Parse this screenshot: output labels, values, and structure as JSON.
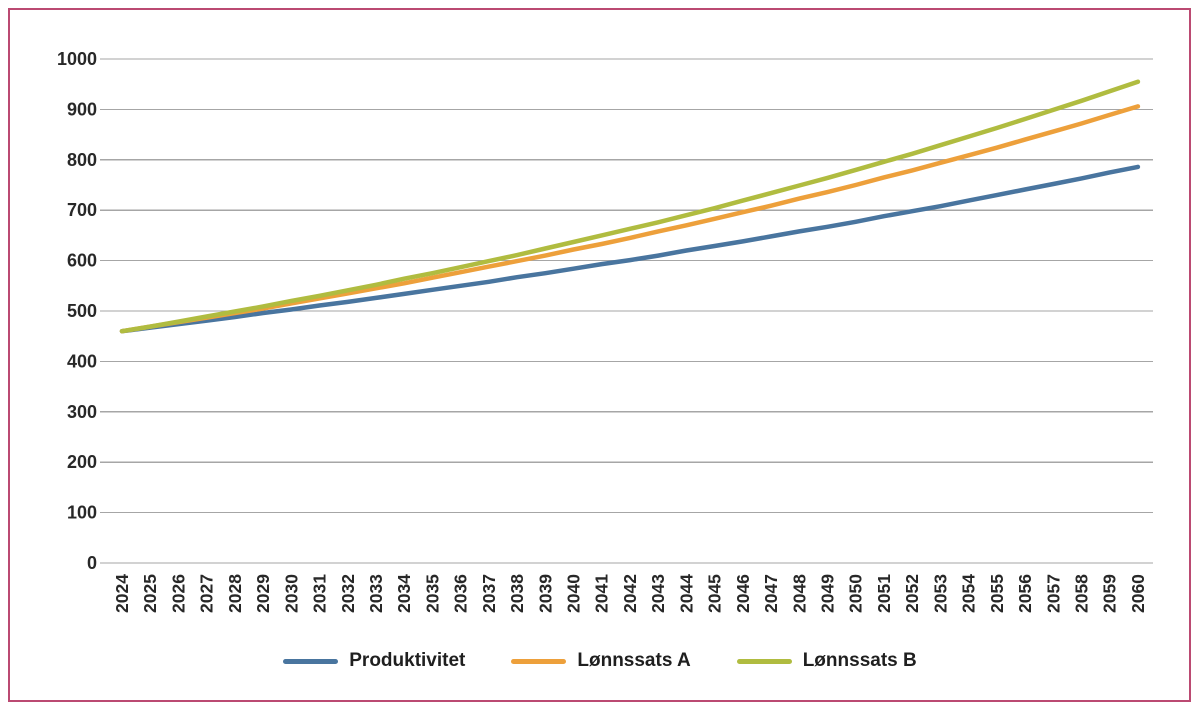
{
  "frame": {
    "border_color": "#bb4a72"
  },
  "chart_data": {
    "type": "line",
    "title": "",
    "xlabel": "",
    "ylabel": "",
    "ylim": [
      0,
      1000
    ],
    "ytick_step": 100,
    "grid": "horizontal",
    "gridline_color": "#a6a6a6",
    "legend_position": "bottom",
    "x": [
      2024,
      2025,
      2026,
      2027,
      2028,
      2029,
      2030,
      2031,
      2032,
      2033,
      2034,
      2035,
      2036,
      2037,
      2038,
      2039,
      2040,
      2041,
      2042,
      2043,
      2044,
      2045,
      2046,
      2047,
      2048,
      2049,
      2050,
      2051,
      2052,
      2053,
      2054,
      2055,
      2056,
      2057,
      2058,
      2059,
      2060
    ],
    "series": [
      {
        "name": "Produktivitet",
        "color": "#49759f",
        "values": [
          460,
          467,
          474,
          481,
          488,
          496,
          503,
          511,
          518,
          526,
          534,
          542,
          550,
          558,
          567,
          575,
          584,
          593,
          601,
          610,
          620,
          629,
          638,
          648,
          658,
          667,
          677,
          688,
          698,
          708,
          719,
          730,
          741,
          752,
          763,
          775,
          786
        ]
      },
      {
        "name": "Lønnssats A",
        "color": "#eda03b",
        "values": [
          460,
          469,
          478,
          487,
          496,
          505,
          515,
          525,
          535,
          545,
          555,
          566,
          577,
          588,
          599,
          610,
          622,
          633,
          645,
          658,
          670,
          683,
          696,
          709,
          723,
          736,
          750,
          765,
          779,
          794,
          809,
          824,
          840,
          856,
          872,
          889,
          906
        ]
      },
      {
        "name": "Lønnssats B",
        "color": "#b0bc40",
        "values": [
          460,
          469,
          479,
          489,
          499,
          509,
          520,
          530,
          541,
          552,
          564,
          575,
          587,
          599,
          611,
          624,
          637,
          650,
          663,
          676,
          690,
          704,
          719,
          734,
          749,
          764,
          780,
          796,
          812,
          829,
          846,
          863,
          881,
          899,
          917,
          936,
          955
        ]
      }
    ]
  }
}
